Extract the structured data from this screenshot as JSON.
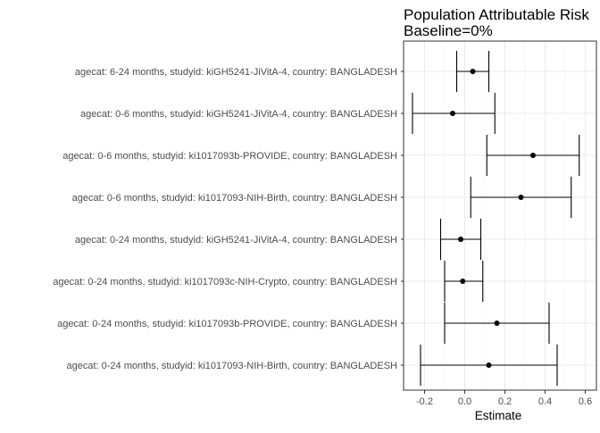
{
  "chart_data": {
    "type": "forest",
    "title": [
      "Population Attributable Risk",
      "Baseline=0%"
    ],
    "xlabel": "Estimate",
    "ylabel": "",
    "xlim": [
      -0.3,
      0.6
    ],
    "xticks": [
      -0.2,
      0.0,
      0.2,
      0.4,
      0.6
    ],
    "xtick_labels": [
      "-0.2",
      "0.0",
      "0.2",
      "0.4",
      "0.6"
    ],
    "grid": true,
    "categories": [
      "agecat: 6-24 months, studyid: kiGH5241-JiVitA-4, country: BANGLADESH",
      "agecat: 0-6 months, studyid: kiGH5241-JiVitA-4, country: BANGLADESH",
      "agecat: 0-6 months, studyid: ki1017093b-PROVIDE, country: BANGLADESH",
      "agecat: 0-6 months, studyid: ki1017093-NIH-Birth, country: BANGLADESH",
      "agecat: 0-24 months, studyid: kiGH5241-JiVitA-4, country: BANGLADESH",
      "agecat: 0-24 months, studyid: ki1017093c-NIH-Crypto, country: BANGLADESH",
      "agecat: 0-24 months, studyid: ki1017093b-PROVIDE, country: BANGLADESH",
      "agecat: 0-24 months, studyid: ki1017093-NIH-Birth, country: BANGLADESH"
    ],
    "estimates": [
      0.04,
      -0.06,
      0.34,
      0.28,
      -0.02,
      -0.01,
      0.16,
      0.12
    ],
    "ci_lower": [
      -0.04,
      -0.26,
      0.11,
      0.03,
      -0.12,
      -0.1,
      -0.1,
      -0.22
    ],
    "ci_upper": [
      0.12,
      0.15,
      0.57,
      0.53,
      0.08,
      0.09,
      0.42,
      0.46
    ]
  }
}
